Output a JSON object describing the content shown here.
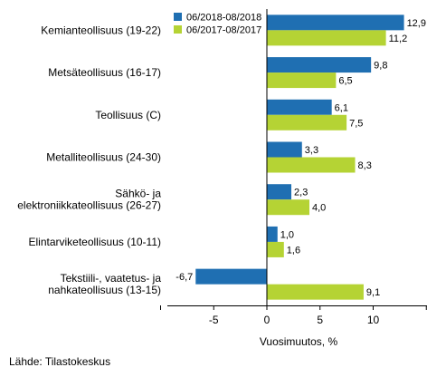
{
  "chart_data": {
    "type": "bar",
    "orientation": "horizontal",
    "categories": [
      [
        "Kemianteollisuus (19-22)"
      ],
      [
        "Metsäteollisuus (16-17)"
      ],
      [
        "Teollisuus (C)"
      ],
      [
        "Metalliteollisuus (24-30)"
      ],
      [
        "Sähkö- ja",
        "elektroniikkateollisuus (26-27)"
      ],
      [
        "Elintarviketeollisuus (10-11)"
      ],
      [
        "Tekstiili-, vaatetus- ja",
        "nahkateollisuus (13-15)"
      ]
    ],
    "series": [
      {
        "name": "06/2018-08/2018",
        "color": "#1f6fb2",
        "values": [
          12.9,
          9.8,
          6.1,
          3.3,
          2.3,
          1.0,
          -6.7
        ],
        "labels": [
          "12,9",
          "9,8",
          "6,1",
          "3,3",
          "2,3",
          "1,0",
          "-6,7"
        ]
      },
      {
        "name": "06/2017-08/2017",
        "color": "#b5d334",
        "values": [
          11.2,
          6.5,
          7.5,
          8.3,
          4.0,
          1.6,
          9.1
        ],
        "labels": [
          "11,2",
          "6,5",
          "7,5",
          "8,3",
          "4,0",
          "1,6",
          "9,1"
        ]
      }
    ],
    "xlabel": "Vuosimuutos, %",
    "xlim": [
      -10,
      15
    ],
    "xticks": [
      -5,
      0,
      5,
      10
    ],
    "xtick_labels": [
      "-5",
      "0",
      "5",
      "10"
    ],
    "legend_position": "top-left",
    "grid": false
  },
  "source": "Lähde: Tilastokeskus"
}
